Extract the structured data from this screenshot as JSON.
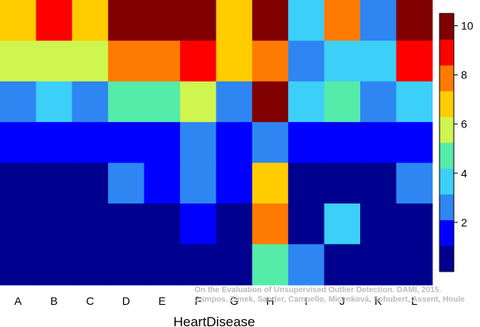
{
  "chart_data": {
    "type": "heatmap",
    "xlabel": "HeartDisease",
    "columns": [
      "A",
      "B",
      "C",
      "D",
      "E",
      "F",
      "G",
      "H",
      "I",
      "J",
      "K",
      "L"
    ],
    "value_range": [
      0,
      10.5
    ],
    "colorbar_ticks": [
      2,
      4,
      6,
      8,
      10
    ],
    "colormap": [
      "#00008F",
      "#0000FF",
      "#2E86F2",
      "#3CCFF7",
      "#55EBA8",
      "#CFF54F",
      "#FFCC00",
      "#FF7A00",
      "#FF0000",
      "#800000"
    ],
    "rows": [
      [
        6.9,
        9.0,
        6.9,
        10.5,
        10.5,
        10.5,
        6.9,
        10.5,
        4.0,
        8.0,
        3.0,
        10.5
      ],
      [
        6.0,
        6.0,
        6.0,
        8.0,
        8.0,
        9.0,
        6.9,
        8.0,
        3.0,
        4.0,
        4.0,
        9.0
      ],
      [
        3.0,
        4.0,
        3.0,
        5.0,
        5.0,
        6.0,
        3.0,
        10.5,
        4.0,
        5.0,
        3.0,
        4.0
      ],
      [
        2.0,
        2.0,
        2.0,
        2.0,
        2.0,
        3.0,
        2.0,
        3.0,
        2.0,
        2.0,
        2.0,
        2.0
      ],
      [
        1.0,
        1.0,
        1.0,
        3.0,
        2.0,
        3.0,
        2.0,
        6.9,
        1.0,
        1.0,
        1.0,
        3.0
      ],
      [
        1.0,
        1.0,
        1.0,
        1.0,
        1.0,
        2.0,
        1.0,
        8.0,
        1.0,
        4.0,
        1.0,
        1.0
      ],
      [
        1.0,
        1.0,
        1.0,
        1.0,
        1.0,
        1.0,
        1.0,
        5.0,
        3.0,
        1.0,
        1.0,
        1.0
      ]
    ]
  },
  "credit": {
    "line1": "On the Evaluation of Unsupervised Outlier Detection. DAMI, 2015.",
    "line2": "Campos, Zimek, Sander, Campello, Micenková, Schubert, Assent, Houle"
  }
}
